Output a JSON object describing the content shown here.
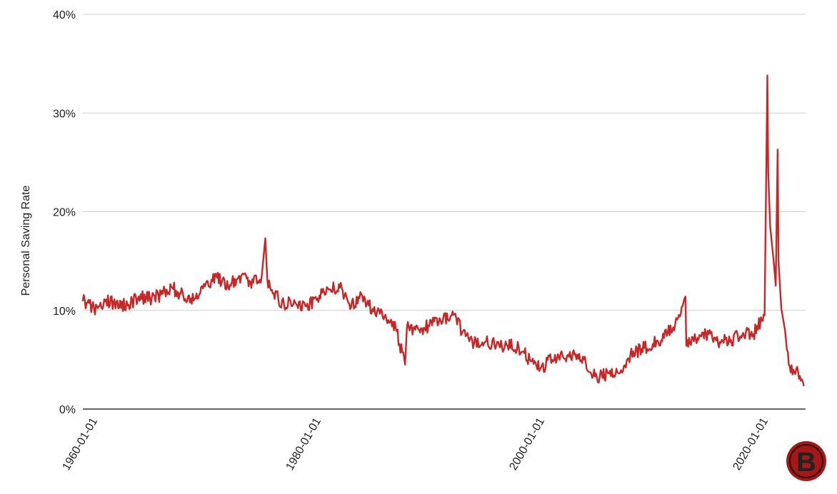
{
  "chart_data": {
    "type": "line",
    "title": "",
    "xlabel": "",
    "ylabel": "Personal Saving Rate",
    "xlim": [
      1959.0,
      2023.67
    ],
    "ylim": [
      0,
      40
    ],
    "y_ticks": [
      "0%",
      "10%",
      "20%",
      "30%",
      "40%"
    ],
    "x_ticks": [
      "1960-01-01",
      "1980-01-01",
      "2000-01-01",
      "2020-01-01"
    ],
    "grid": true,
    "legend": "none",
    "series": [
      {
        "color": "#c62828",
        "x": [
          1959.0,
          1960.0,
          1961.0,
          1962.0,
          1963.0,
          1964.0,
          1965.0,
          1966.0,
          1967.0,
          1968.0,
          1969.0,
          1970.0,
          1971.0,
          1972.0,
          1973.0,
          1974.0,
          1975.0,
          1975.33,
          1975.5,
          1976.0,
          1977.0,
          1978.0,
          1979.0,
          1980.0,
          1981.0,
          1982.0,
          1983.0,
          1984.0,
          1985.0,
          1986.0,
          1987.0,
          1987.83,
          1988.0,
          1989.0,
          1990.0,
          1991.0,
          1992.0,
          1993.0,
          1994.0,
          1995.0,
          1996.0,
          1997.0,
          1998.0,
          1999.0,
          2000.0,
          2001.0,
          2002.0,
          2003.0,
          2004.0,
          2005.0,
          2006.0,
          2007.0,
          2008.0,
          2009.0,
          2010.0,
          2011.0,
          2012.0,
          2012.92,
          2013.0,
          2014.0,
          2015.0,
          2016.0,
          2017.0,
          2018.0,
          2019.0,
          2020.0,
          2020.25,
          2020.33,
          2020.5,
          2020.83,
          2021.0,
          2021.17,
          2021.25,
          2021.5,
          2021.83,
          2022.0,
          2022.5,
          2023.0,
          2023.5
        ],
        "values": [
          11.0,
          10.2,
          10.9,
          10.8,
          10.5,
          11.4,
          11.2,
          11.6,
          12.3,
          11.4,
          11.2,
          12.7,
          13.3,
          12.3,
          13.5,
          12.9,
          13.4,
          17.3,
          13.2,
          11.7,
          10.6,
          10.8,
          10.4,
          11.2,
          12.1,
          12.3,
          10.3,
          11.5,
          9.9,
          9.4,
          8.2,
          4.5,
          8.3,
          8.1,
          8.4,
          9.0,
          9.5,
          7.9,
          6.6,
          6.8,
          6.5,
          6.4,
          6.3,
          5.0,
          4.2,
          5.0,
          5.2,
          5.5,
          4.7,
          3.2,
          3.6,
          3.6,
          5.6,
          6.1,
          6.6,
          7.2,
          8.6,
          11.4,
          6.4,
          7.2,
          7.6,
          6.8,
          7.0,
          7.5,
          7.6,
          9.5,
          33.8,
          24.0,
          18.5,
          14.8,
          12.5,
          26.3,
          15.0,
          10.2,
          8.0,
          6.0,
          3.5,
          3.8,
          2.4
        ]
      }
    ]
  },
  "watermark": {
    "letter": "B"
  }
}
